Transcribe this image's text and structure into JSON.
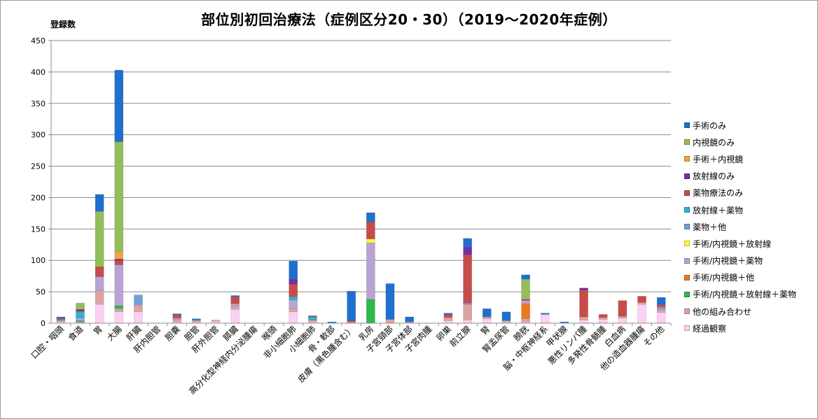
{
  "chart_data": {
    "type": "bar",
    "stacked": true,
    "title": "部位別初回治療法（症例区分20・30）（2019～2020年症例）",
    "ylabel": "登録数",
    "xlabel": "",
    "ylim": [
      0,
      450
    ],
    "yticks": [
      0,
      50,
      100,
      150,
      200,
      250,
      300,
      350,
      400,
      450
    ],
    "grid": true,
    "legend_position": "right",
    "categories": [
      "口腔・咽頭",
      "食道",
      "胃",
      "大腸",
      "肝臓",
      "肝内胆管",
      "胆嚢",
      "胆管",
      "肝外胆管",
      "膵臓",
      "高分化型神経内分泌腫瘍",
      "喉頭",
      "非小細胞肺",
      "小細胞肺",
      "骨・軟部",
      "皮膚（黒色腫含む）",
      "乳房",
      "子宮頸部",
      "子宮体部",
      "子宮肉腫",
      "卵巣",
      "前立腺",
      "腎",
      "腎盂尿管",
      "膀胱",
      "脳・中枢神経系",
      "甲状腺",
      "悪性リンパ腫",
      "多発性骨髄腫",
      "白血病",
      "他の造血器腫瘍",
      "その他"
    ],
    "series": [
      {
        "name": "経過観察",
        "color": "#fccff5",
        "values": [
          2,
          0,
          30,
          18,
          18,
          0,
          2,
          2,
          3,
          22,
          0,
          0,
          18,
          2,
          0,
          0,
          0,
          0,
          0,
          0,
          4,
          5,
          7,
          2,
          2,
          14,
          0,
          5,
          6,
          8,
          30,
          17
        ]
      },
      {
        "name": "他の組み合わせ",
        "color": "#dba49f",
        "values": [
          2,
          2,
          22,
          5,
          10,
          0,
          4,
          2,
          2,
          5,
          0,
          0,
          5,
          3,
          0,
          2,
          0,
          6,
          2,
          0,
          5,
          25,
          3,
          2,
          5,
          0,
          0,
          5,
          3,
          3,
          3,
          4
        ]
      },
      {
        "name": "手術/内視鏡＋放射線＋薬物",
        "color": "#2eb84a",
        "values": [
          0,
          2,
          0,
          5,
          0,
          0,
          0,
          0,
          0,
          0,
          0,
          0,
          0,
          0,
          0,
          0,
          38,
          0,
          0,
          0,
          0,
          0,
          0,
          0,
          0,
          0,
          0,
          0,
          0,
          0,
          0,
          0
        ]
      },
      {
        "name": "手術/内視鏡＋他",
        "color": "#e9791d",
        "values": [
          0,
          0,
          0,
          0,
          0,
          0,
          0,
          0,
          0,
          0,
          0,
          0,
          0,
          0,
          0,
          0,
          0,
          0,
          0,
          0,
          0,
          0,
          0,
          0,
          24,
          0,
          0,
          0,
          0,
          0,
          0,
          0
        ]
      },
      {
        "name": "手術/内視鏡＋薬物",
        "color": "#b9a3d4",
        "values": [
          1,
          4,
          22,
          65,
          2,
          0,
          2,
          1,
          0,
          4,
          0,
          0,
          14,
          0,
          0,
          0,
          90,
          0,
          0,
          0,
          0,
          0,
          0,
          0,
          5,
          0,
          0,
          0,
          0,
          0,
          0,
          2
        ]
      },
      {
        "name": "手術/内視鏡＋放射線",
        "color": "#ffff33",
        "values": [
          0,
          0,
          0,
          0,
          0,
          0,
          0,
          0,
          0,
          0,
          0,
          0,
          0,
          0,
          0,
          0,
          6,
          0,
          0,
          0,
          0,
          0,
          0,
          0,
          0,
          0,
          0,
          0,
          0,
          0,
          0,
          0
        ]
      },
      {
        "name": "薬物＋他",
        "color": "#6f9fd4",
        "values": [
          0,
          0,
          0,
          0,
          15,
          0,
          0,
          0,
          0,
          0,
          0,
          0,
          0,
          0,
          0,
          0,
          0,
          0,
          0,
          0,
          0,
          2,
          0,
          0,
          0,
          0,
          0,
          0,
          0,
          0,
          0,
          3
        ]
      },
      {
        "name": "放射線＋薬物",
        "color": "#25b7d4",
        "values": [
          1,
          10,
          0,
          0,
          0,
          0,
          0,
          0,
          0,
          0,
          0,
          0,
          5,
          5,
          0,
          0,
          0,
          0,
          0,
          0,
          0,
          0,
          0,
          0,
          0,
          0,
          0,
          0,
          0,
          0,
          0,
          0
        ]
      },
      {
        "name": "薬物療法のみ",
        "color": "#c84b4b",
        "values": [
          2,
          2,
          16,
          7,
          0,
          0,
          5,
          0,
          0,
          11,
          0,
          0,
          20,
          2,
          0,
          2,
          27,
          0,
          0,
          0,
          5,
          77,
          0,
          0,
          2,
          0,
          0,
          43,
          5,
          25,
          10,
          4
        ]
      },
      {
        "name": "放射線のみ",
        "color": "#6f2fa8",
        "values": [
          0,
          2,
          0,
          2,
          0,
          0,
          0,
          0,
          0,
          0,
          0,
          0,
          8,
          0,
          0,
          0,
          0,
          0,
          0,
          0,
          0,
          12,
          0,
          0,
          0,
          0,
          0,
          3,
          0,
          0,
          0,
          0
        ]
      },
      {
        "name": "手術＋内視鏡",
        "color": "#f0a442",
        "values": [
          0,
          0,
          0,
          12,
          0,
          0,
          0,
          0,
          0,
          0,
          0,
          0,
          0,
          0,
          0,
          0,
          0,
          0,
          0,
          0,
          0,
          0,
          0,
          0,
          0,
          0,
          0,
          0,
          0,
          0,
          0,
          0
        ]
      },
      {
        "name": "内視鏡のみ",
        "color": "#93be5a",
        "values": [
          0,
          10,
          88,
          175,
          0,
          0,
          0,
          0,
          0,
          0,
          0,
          0,
          0,
          0,
          0,
          0,
          0,
          0,
          0,
          0,
          0,
          0,
          0,
          0,
          32,
          0,
          0,
          0,
          0,
          0,
          0,
          0
        ]
      },
      {
        "name": "手術のみ",
        "color": "#1f6fcf",
        "values": [
          2,
          0,
          27,
          114,
          0,
          0,
          2,
          2,
          0,
          2,
          0,
          0,
          29,
          0,
          2,
          47,
          15,
          57,
          8,
          0,
          2,
          14,
          13,
          14,
          7,
          2,
          2,
          0,
          0,
          0,
          0,
          11
        ]
      }
    ]
  }
}
